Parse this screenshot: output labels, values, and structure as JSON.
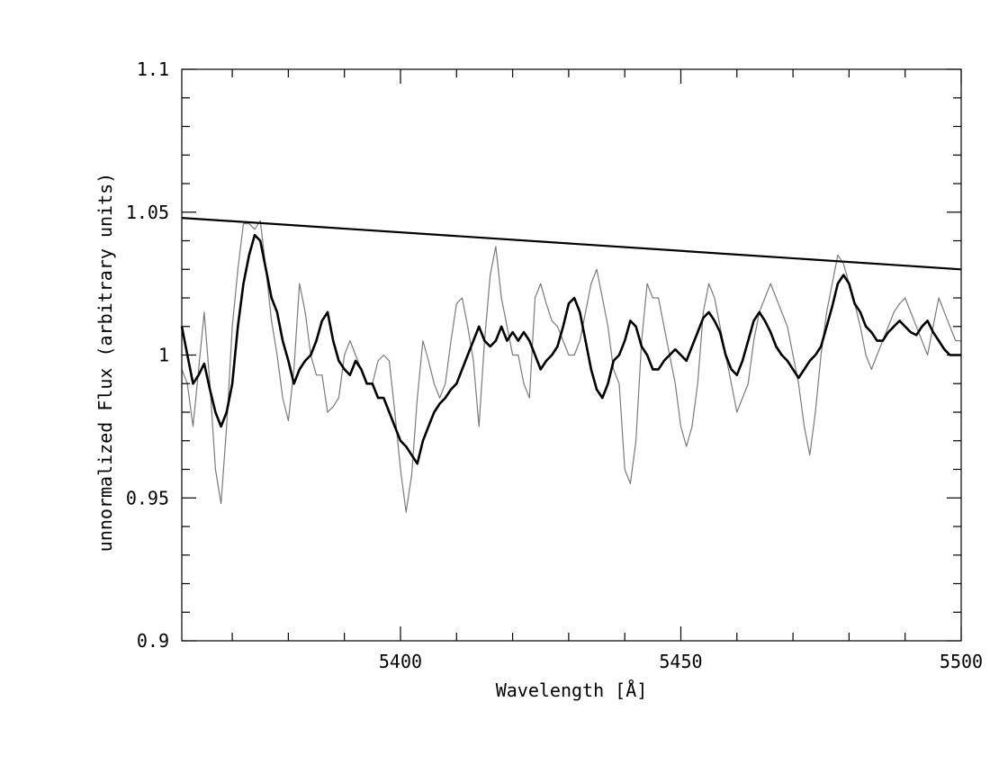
{
  "chart_data": {
    "type": "line",
    "title": "",
    "xlabel": "Wavelength [Å]",
    "ylabel": "unnormalized Flux (arbitrary units)",
    "xlim": [
      5361,
      5500
    ],
    "ylim": [
      0.9,
      1.1
    ],
    "x_ticks": [
      {
        "value": 5400,
        "label": "5400"
      },
      {
        "value": 5450,
        "label": "5450"
      },
      {
        "value": 5500,
        "label": "5500"
      }
    ],
    "y_ticks": [
      {
        "value": 0.9,
        "label": "0.9"
      },
      {
        "value": 0.95,
        "label": "0.95"
      },
      {
        "value": 1.0,
        "label": "1"
      },
      {
        "value": 1.05,
        "label": "1.05"
      },
      {
        "value": 1.1,
        "label": "1.1"
      }
    ],
    "grid": false,
    "series": [
      {
        "style": "thin-gray",
        "color": "#7a7a7a",
        "x": [
          5361,
          5362,
          5363,
          5364,
          5365,
          5366,
          5367,
          5368,
          5369,
          5370,
          5371,
          5372,
          5373,
          5374,
          5375,
          5376,
          5377,
          5378,
          5379,
          5380,
          5381,
          5382,
          5383,
          5384,
          5385,
          5386,
          5387,
          5388,
          5389,
          5390,
          5391,
          5392,
          5393,
          5394,
          5395,
          5396,
          5397,
          5398,
          5399,
          5400,
          5401,
          5402,
          5403,
          5404,
          5405,
          5406,
          5407,
          5408,
          5409,
          5410,
          5411,
          5412,
          5413,
          5414,
          5415,
          5416,
          5417,
          5418,
          5419,
          5420,
          5421,
          5422,
          5423,
          5424,
          5425,
          5426,
          5427,
          5428,
          5429,
          5430,
          5431,
          5432,
          5433,
          5434,
          5435,
          5436,
          5437,
          5438,
          5439,
          5440,
          5441,
          5442,
          5443,
          5444,
          5445,
          5446,
          5447,
          5448,
          5449,
          5450,
          5451,
          5452,
          5453,
          5454,
          5455,
          5456,
          5457,
          5458,
          5459,
          5460,
          5461,
          5462,
          5463,
          5464,
          5465,
          5466,
          5467,
          5468,
          5469,
          5470,
          5471,
          5472,
          5473,
          5474,
          5475,
          5476,
          5477,
          5478,
          5479,
          5480,
          5481,
          5482,
          5483,
          5484,
          5485,
          5486,
          5487,
          5488,
          5489,
          5490,
          5491,
          5492,
          5493,
          5494,
          5495,
          5496,
          5497,
          5498,
          5499,
          5500
        ],
        "y": [
          0.995,
          0.99,
          0.975,
          0.995,
          1.015,
          0.99,
          0.96,
          0.948,
          0.975,
          1.01,
          1.03,
          1.046,
          1.046,
          1.044,
          1.047,
          1.03,
          1.012,
          1.0,
          0.985,
          0.977,
          0.995,
          1.025,
          1.015,
          1.0,
          0.993,
          0.993,
          0.98,
          0.982,
          0.985,
          1.0,
          1.005,
          1.0,
          0.995,
          0.99,
          0.99,
          0.998,
          1.0,
          0.998,
          0.98,
          0.96,
          0.945,
          0.958,
          0.985,
          1.005,
          0.998,
          0.99,
          0.985,
          0.99,
          1.005,
          1.018,
          1.02,
          1.01,
          0.998,
          0.975,
          1.005,
          1.028,
          1.038,
          1.02,
          1.01,
          1.0,
          1.0,
          0.99,
          0.985,
          1.02,
          1.025,
          1.018,
          1.012,
          1.01,
          1.005,
          1.0,
          1.0,
          1.005,
          1.015,
          1.025,
          1.03,
          1.02,
          1.01,
          0.995,
          0.99,
          0.96,
          0.955,
          0.97,
          1.005,
          1.025,
          1.02,
          1.02,
          1.01,
          1.0,
          0.99,
          0.975,
          0.968,
          0.975,
          0.99,
          1.015,
          1.025,
          1.02,
          1.01,
          1.0,
          0.99,
          0.98,
          0.985,
          0.99,
          1.005,
          1.015,
          1.02,
          1.025,
          1.02,
          1.015,
          1.01,
          1.0,
          0.99,
          0.975,
          0.965,
          0.98,
          1.0,
          1.015,
          1.025,
          1.035,
          1.032,
          1.025,
          1.018,
          1.01,
          1.0,
          0.995,
          1.0,
          1.005,
          1.01,
          1.015,
          1.018,
          1.02,
          1.015,
          1.01,
          1.005,
          1.0,
          1.01,
          1.02,
          1.015,
          1.01,
          1.005,
          1.005
        ]
      },
      {
        "style": "thick-black",
        "color": "#000000",
        "x": [
          5361,
          5362,
          5363,
          5364,
          5365,
          5366,
          5367,
          5368,
          5369,
          5370,
          5371,
          5372,
          5373,
          5374,
          5375,
          5376,
          5377,
          5378,
          5379,
          5380,
          5381,
          5382,
          5383,
          5384,
          5385,
          5386,
          5387,
          5388,
          5389,
          5390,
          5391,
          5392,
          5393,
          5394,
          5395,
          5396,
          5397,
          5398,
          5399,
          5400,
          5401,
          5402,
          5403,
          5404,
          5405,
          5406,
          5407,
          5408,
          5409,
          5410,
          5411,
          5412,
          5413,
          5414,
          5415,
          5416,
          5417,
          5418,
          5419,
          5420,
          5421,
          5422,
          5423,
          5424,
          5425,
          5426,
          5427,
          5428,
          5429,
          5430,
          5431,
          5432,
          5433,
          5434,
          5435,
          5436,
          5437,
          5438,
          5439,
          5440,
          5441,
          5442,
          5443,
          5444,
          5445,
          5446,
          5447,
          5448,
          5449,
          5450,
          5451,
          5452,
          5453,
          5454,
          5455,
          5456,
          5457,
          5458,
          5459,
          5460,
          5461,
          5462,
          5463,
          5464,
          5465,
          5466,
          5467,
          5468,
          5469,
          5470,
          5471,
          5472,
          5473,
          5474,
          5475,
          5476,
          5477,
          5478,
          5479,
          5480,
          5481,
          5482,
          5483,
          5484,
          5485,
          5486,
          5487,
          5488,
          5489,
          5490,
          5491,
          5492,
          5493,
          5494,
          5495,
          5496,
          5497,
          5498,
          5499,
          5500
        ],
        "y": [
          1.01,
          1.0,
          0.99,
          0.993,
          0.997,
          0.988,
          0.98,
          0.975,
          0.98,
          0.99,
          1.01,
          1.025,
          1.035,
          1.042,
          1.04,
          1.03,
          1.02,
          1.015,
          1.005,
          0.998,
          0.99,
          0.995,
          0.998,
          1.0,
          1.005,
          1.012,
          1.015,
          1.005,
          0.998,
          0.995,
          0.993,
          0.998,
          0.995,
          0.99,
          0.99,
          0.985,
          0.985,
          0.98,
          0.975,
          0.97,
          0.968,
          0.965,
          0.962,
          0.97,
          0.975,
          0.98,
          0.983,
          0.985,
          0.988,
          0.99,
          0.995,
          1.0,
          1.005,
          1.01,
          1.005,
          1.003,
          1.005,
          1.01,
          1.005,
          1.008,
          1.005,
          1.008,
          1.005,
          1.0,
          0.995,
          0.998,
          1.0,
          1.003,
          1.01,
          1.018,
          1.02,
          1.015,
          1.005,
          0.995,
          0.988,
          0.985,
          0.99,
          0.998,
          1.0,
          1.005,
          1.012,
          1.01,
          1.003,
          1.0,
          0.995,
          0.995,
          0.998,
          1.0,
          1.002,
          1.0,
          0.998,
          1.003,
          1.008,
          1.013,
          1.015,
          1.012,
          1.008,
          1.0,
          0.995,
          0.993,
          0.998,
          1.005,
          1.012,
          1.015,
          1.012,
          1.008,
          1.003,
          1.0,
          0.998,
          0.995,
          0.992,
          0.995,
          0.998,
          1.0,
          1.003,
          1.01,
          1.017,
          1.025,
          1.028,
          1.025,
          1.018,
          1.015,
          1.01,
          1.008,
          1.005,
          1.005,
          1.008,
          1.01,
          1.012,
          1.01,
          1.008,
          1.007,
          1.01,
          1.012,
          1.008,
          1.005,
          1.002,
          1.0,
          1.0,
          1.0
        ]
      },
      {
        "style": "continuum-line",
        "color": "#000000",
        "x": [
          5361,
          5500
        ],
        "y": [
          1.048,
          1.03
        ]
      }
    ]
  }
}
